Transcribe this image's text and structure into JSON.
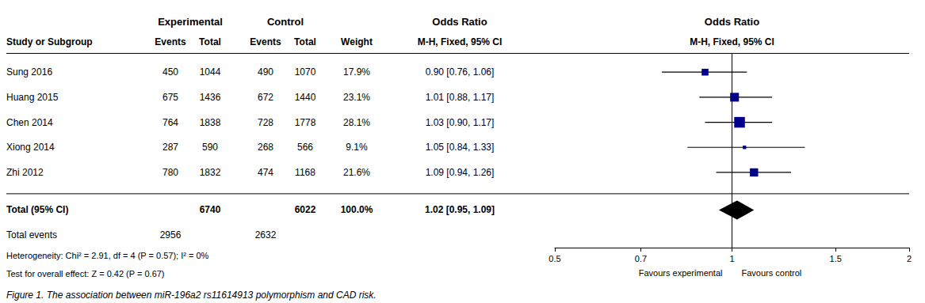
{
  "chart_data": {
    "type": "forest",
    "log": "x",
    "grid": false,
    "xlim": [
      0.5,
      2.0
    ],
    "xticks": [
      0.5,
      0.7,
      1,
      1.5,
      2
    ],
    "color": "#00008B",
    "x_label_left": "Favours experimental",
    "x_label_right": "Favours control",
    "group_headers": [
      "Experimental",
      "Control"
    ],
    "effect_header": "Odds Ratio",
    "effect_method": "M-H, Fixed, 95% CI",
    "column_headers": [
      "Study or Subgroup",
      "Events",
      "Total",
      "Events",
      "Total",
      "Weight"
    ],
    "studies": [
      {
        "name": "Sung 2016",
        "exp_events": 450,
        "exp_total": 1044,
        "ctrl_events": 490,
        "ctrl_total": 1070,
        "weight": 17.9,
        "weight_label": "17.9%",
        "or": 0.9,
        "ci_low": 0.76,
        "ci_high": 1.06,
        "or_label": "0.90 [0.76, 1.06]"
      },
      {
        "name": "Huang 2015",
        "exp_events": 675,
        "exp_total": 1436,
        "ctrl_events": 672,
        "ctrl_total": 1440,
        "weight": 23.1,
        "weight_label": "23.1%",
        "or": 1.01,
        "ci_low": 0.88,
        "ci_high": 1.17,
        "or_label": "1.01 [0.88, 1.17]"
      },
      {
        "name": "Chen 2014",
        "exp_events": 764,
        "exp_total": 1838,
        "ctrl_events": 728,
        "ctrl_total": 1778,
        "weight": 28.1,
        "weight_label": "28.1%",
        "or": 1.03,
        "ci_low": 0.9,
        "ci_high": 1.17,
        "or_label": "1.03 [0.90, 1.17]"
      },
      {
        "name": "Xiong 2014",
        "exp_events": 287,
        "exp_total": 590,
        "ctrl_events": 268,
        "ctrl_total": 566,
        "weight": 9.1,
        "weight_label": "9.1%",
        "or": 1.05,
        "ci_low": 0.84,
        "ci_high": 1.33,
        "or_label": "1.05 [0.84, 1.33]"
      },
      {
        "name": "Zhi 2012",
        "exp_events": 780,
        "exp_total": 1832,
        "ctrl_events": 474,
        "ctrl_total": 1168,
        "weight": 21.6,
        "weight_label": "21.6%",
        "or": 1.09,
        "ci_low": 0.94,
        "ci_high": 1.26,
        "or_label": "1.09 [0.94, 1.26]"
      }
    ],
    "total": {
      "label": "Total (95% CI)",
      "exp_total": 6740,
      "ctrl_total": 6022,
      "weight": 100.0,
      "weight_label": "100.0%",
      "or": 1.02,
      "ci_low": 0.95,
      "ci_high": 1.09,
      "or_label": "1.02 [0.95, 1.09]",
      "color": "#000000",
      "events_label": "Total events",
      "exp_events": 2956,
      "ctrl_events": 2632
    },
    "heterogeneity": "Heterogeneity: Chi² = 2.91, df = 4 (P = 0.57); I² = 0%",
    "overall_effect": "Test for overall effect: Z = 0.42 (P = 0.67)",
    "caption": "Figure 1. The association between miR-196a2 rs11614913 polymorphism and CAD risk."
  }
}
